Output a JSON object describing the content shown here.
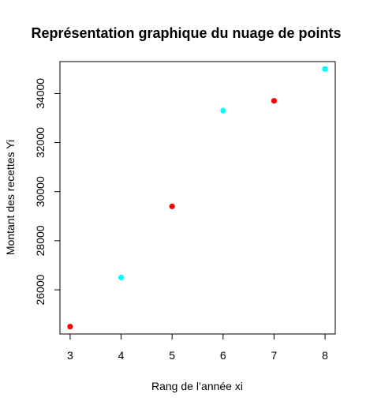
{
  "chart_data": {
    "type": "scatter",
    "title": "Représentation graphique du nuage de points",
    "xlabel": "Rang de l’année xi",
    "ylabel": "Montant des recettes Yi",
    "xlim": [
      2.8,
      8.2
    ],
    "ylim": [
      24200,
      35300
    ],
    "x_ticks": [
      3,
      4,
      5,
      6,
      7,
      8
    ],
    "y_ticks": [
      26000,
      28000,
      30000,
      32000,
      34000
    ],
    "grid": false,
    "points": [
      {
        "x": 3,
        "y": 24500,
        "color": "#ff0000"
      },
      {
        "x": 4,
        "y": 26500,
        "color": "#00ffff"
      },
      {
        "x": 5,
        "y": 29400,
        "color": "#ff0000"
      },
      {
        "x": 6,
        "y": 33300,
        "color": "#00ffff"
      },
      {
        "x": 7,
        "y": 33700,
        "color": "#ff0000"
      },
      {
        "x": 8,
        "y": 35000,
        "color": "#00ffff"
      }
    ]
  }
}
